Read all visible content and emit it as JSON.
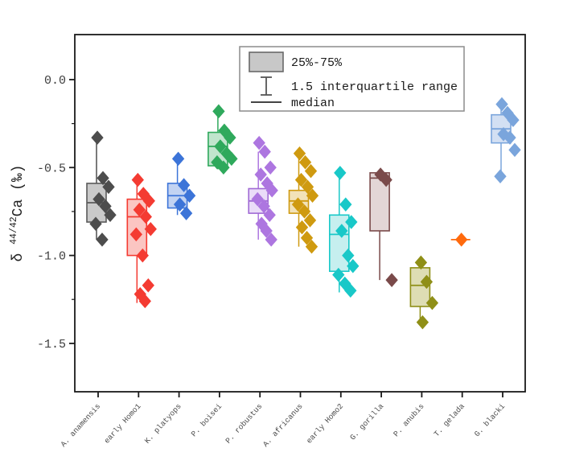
{
  "chart_data": {
    "type": "box-scatter",
    "title": "",
    "ylabel": {
      "prefix": "δ",
      "superscript": "44/42",
      "suffix": "Ca (‰)"
    },
    "ylim": [
      -1.775,
      0.256
    ],
    "yticks": [
      0.0,
      -0.5,
      -1.0,
      -1.5
    ],
    "ytick_labels": [
      "0.0",
      "-0.5",
      "-1.0",
      "-1.5"
    ],
    "yminorticks": [
      -0.25,
      -0.75,
      -1.25
    ],
    "grid": false,
    "legend_position": "top-center-inside",
    "legend": [
      {
        "symbol": "box",
        "label": "25%-75%"
      },
      {
        "symbol": "whisker",
        "label": "1.5 interquartile range"
      },
      {
        "symbol": "line",
        "label": "median"
      }
    ],
    "categories": [
      "A. anamensis",
      "early Homo1",
      "K. platyops",
      "P. boisei",
      "P. robustus",
      "A. africanus",
      "early Homo2",
      "G. gorilla",
      "P. anubis",
      "T. gelada",
      "G. blacki"
    ],
    "series": [
      {
        "name": "A. anamensis",
        "color": "#4d4d4d",
        "box_fill": "#c9c9c9",
        "box_stroke": "#5a5a5a",
        "box": {
          "q3": -0.59,
          "median": -0.7,
          "q1": -0.81,
          "whisker_high": -0.33,
          "whisker_low": -0.91
        },
        "points": [
          -0.33,
          -0.56,
          -0.61,
          -0.68,
          -0.72,
          -0.77,
          -0.82,
          -0.91
        ]
      },
      {
        "name": "early Homo1",
        "color": "#f43b32",
        "box_fill": "#fbc5c2",
        "box_stroke": "#f43b32",
        "box": {
          "q3": -0.68,
          "median": -0.78,
          "q1": -1.0,
          "whisker_high": -0.57,
          "whisker_low": -1.27
        },
        "points": [
          -0.57,
          -0.65,
          -0.69,
          -0.74,
          -0.78,
          -0.85,
          -0.88,
          -1.0,
          -1.17,
          -1.22,
          -1.26
        ]
      },
      {
        "name": "K. platyops",
        "color": "#3c74d8",
        "box_fill": "#c2d3f2",
        "box_stroke": "#3c74d8",
        "box": {
          "q3": -0.59,
          "median": -0.66,
          "q1": -0.73,
          "whisker_high": -0.45,
          "whisker_low": -0.77
        },
        "points": [
          -0.45,
          -0.6,
          -0.66,
          -0.71,
          -0.76
        ]
      },
      {
        "name": "P. boisei",
        "color": "#2fa95c",
        "box_fill": "#c0e5cd",
        "box_stroke": "#2fa95c",
        "box": {
          "q3": -0.3,
          "median": -0.38,
          "q1": -0.49,
          "whisker_high": -0.18,
          "whisker_low": -0.51
        },
        "points": [
          -0.18,
          -0.29,
          -0.33,
          -0.38,
          -0.42,
          -0.45,
          -0.47,
          -0.5
        ]
      },
      {
        "name": "P. robustus",
        "color": "#ad76e0",
        "box_fill": "#eadcf8",
        "box_stroke": "#a06ad4",
        "box": {
          "q3": -0.62,
          "median": -0.69,
          "q1": -0.76,
          "whisker_high": -0.41,
          "whisker_low": -0.91
        },
        "points": [
          -0.36,
          -0.41,
          -0.5,
          -0.54,
          -0.59,
          -0.63,
          -0.68,
          -0.72,
          -0.77,
          -0.82,
          -0.86,
          -0.91
        ]
      },
      {
        "name": "A. africanus",
        "color": "#cf9a10",
        "box_fill": "#f2e2b8",
        "box_stroke": "#cf9a10",
        "box": {
          "q3": -0.63,
          "median": -0.69,
          "q1": -0.76,
          "whisker_high": -0.42,
          "whisker_low": -0.95
        },
        "points": [
          -0.42,
          -0.47,
          -0.52,
          -0.57,
          -0.61,
          -0.66,
          -0.71,
          -0.75,
          -0.8,
          -0.84,
          -0.9,
          -0.95
        ]
      },
      {
        "name": "early Homo2",
        "color": "#19c8c8",
        "box_fill": "#c6efef",
        "box_stroke": "#19c8c8",
        "box": {
          "q3": -0.77,
          "median": -0.88,
          "q1": -1.09,
          "whisker_high": -0.53,
          "whisker_low": -1.21
        },
        "points": [
          -0.53,
          -0.71,
          -0.81,
          -0.86,
          -1.0,
          -1.06,
          -1.11,
          -1.16,
          -1.2
        ]
      },
      {
        "name": "G. gorilla",
        "color": "#7a4a4a",
        "box_fill": "#e3d6d6",
        "box_stroke": "#7a4a4a",
        "box": {
          "q3": -0.53,
          "median": -0.56,
          "q1": -0.86,
          "whisker_high": -0.53,
          "whisker_low": -1.14
        },
        "points": [
          -0.54,
          -0.57,
          -1.14
        ]
      },
      {
        "name": "P. anubis",
        "color": "#8f8f17",
        "box_fill": "#deddb4",
        "box_stroke": "#8f8f17",
        "box": {
          "q3": -1.07,
          "median": -1.17,
          "q1": -1.29,
          "whisker_high": -1.04,
          "whisker_low": -1.38
        },
        "points": [
          -1.04,
          -1.15,
          -1.27,
          -1.38
        ]
      },
      {
        "name": "T. gelada",
        "color": "#ff6a0d",
        "box_fill": "#ffd9bd",
        "box_stroke": "#ff6a0d",
        "box": {
          "q3": -0.91,
          "median": -0.91,
          "q1": -0.91,
          "whisker_high": -0.91,
          "whisker_low": -0.91
        },
        "points": [
          -0.91
        ]
      },
      {
        "name": "G. blacki",
        "color": "#7aa5dc",
        "box_fill": "#d3e0f3",
        "box_stroke": "#7aa5dc",
        "box": {
          "q3": -0.2,
          "median": -0.28,
          "q1": -0.36,
          "whisker_high": -0.14,
          "whisker_low": -0.55
        },
        "points": [
          -0.14,
          -0.19,
          -0.23,
          -0.31,
          -0.33,
          -0.4,
          -0.55
        ]
      }
    ]
  },
  "colors": {
    "frame": "#1a1a1a",
    "tick_label": "#3d3d3d",
    "x_label": "#4a4a4a",
    "legend_border": "#8c8c8c",
    "legend_text": "#1a1a1a",
    "legend_swatch_fill": "#c8c8c8",
    "legend_swatch_stroke": "#696969",
    "legend_symbol": "#555555",
    "background": "#ffffff"
  }
}
